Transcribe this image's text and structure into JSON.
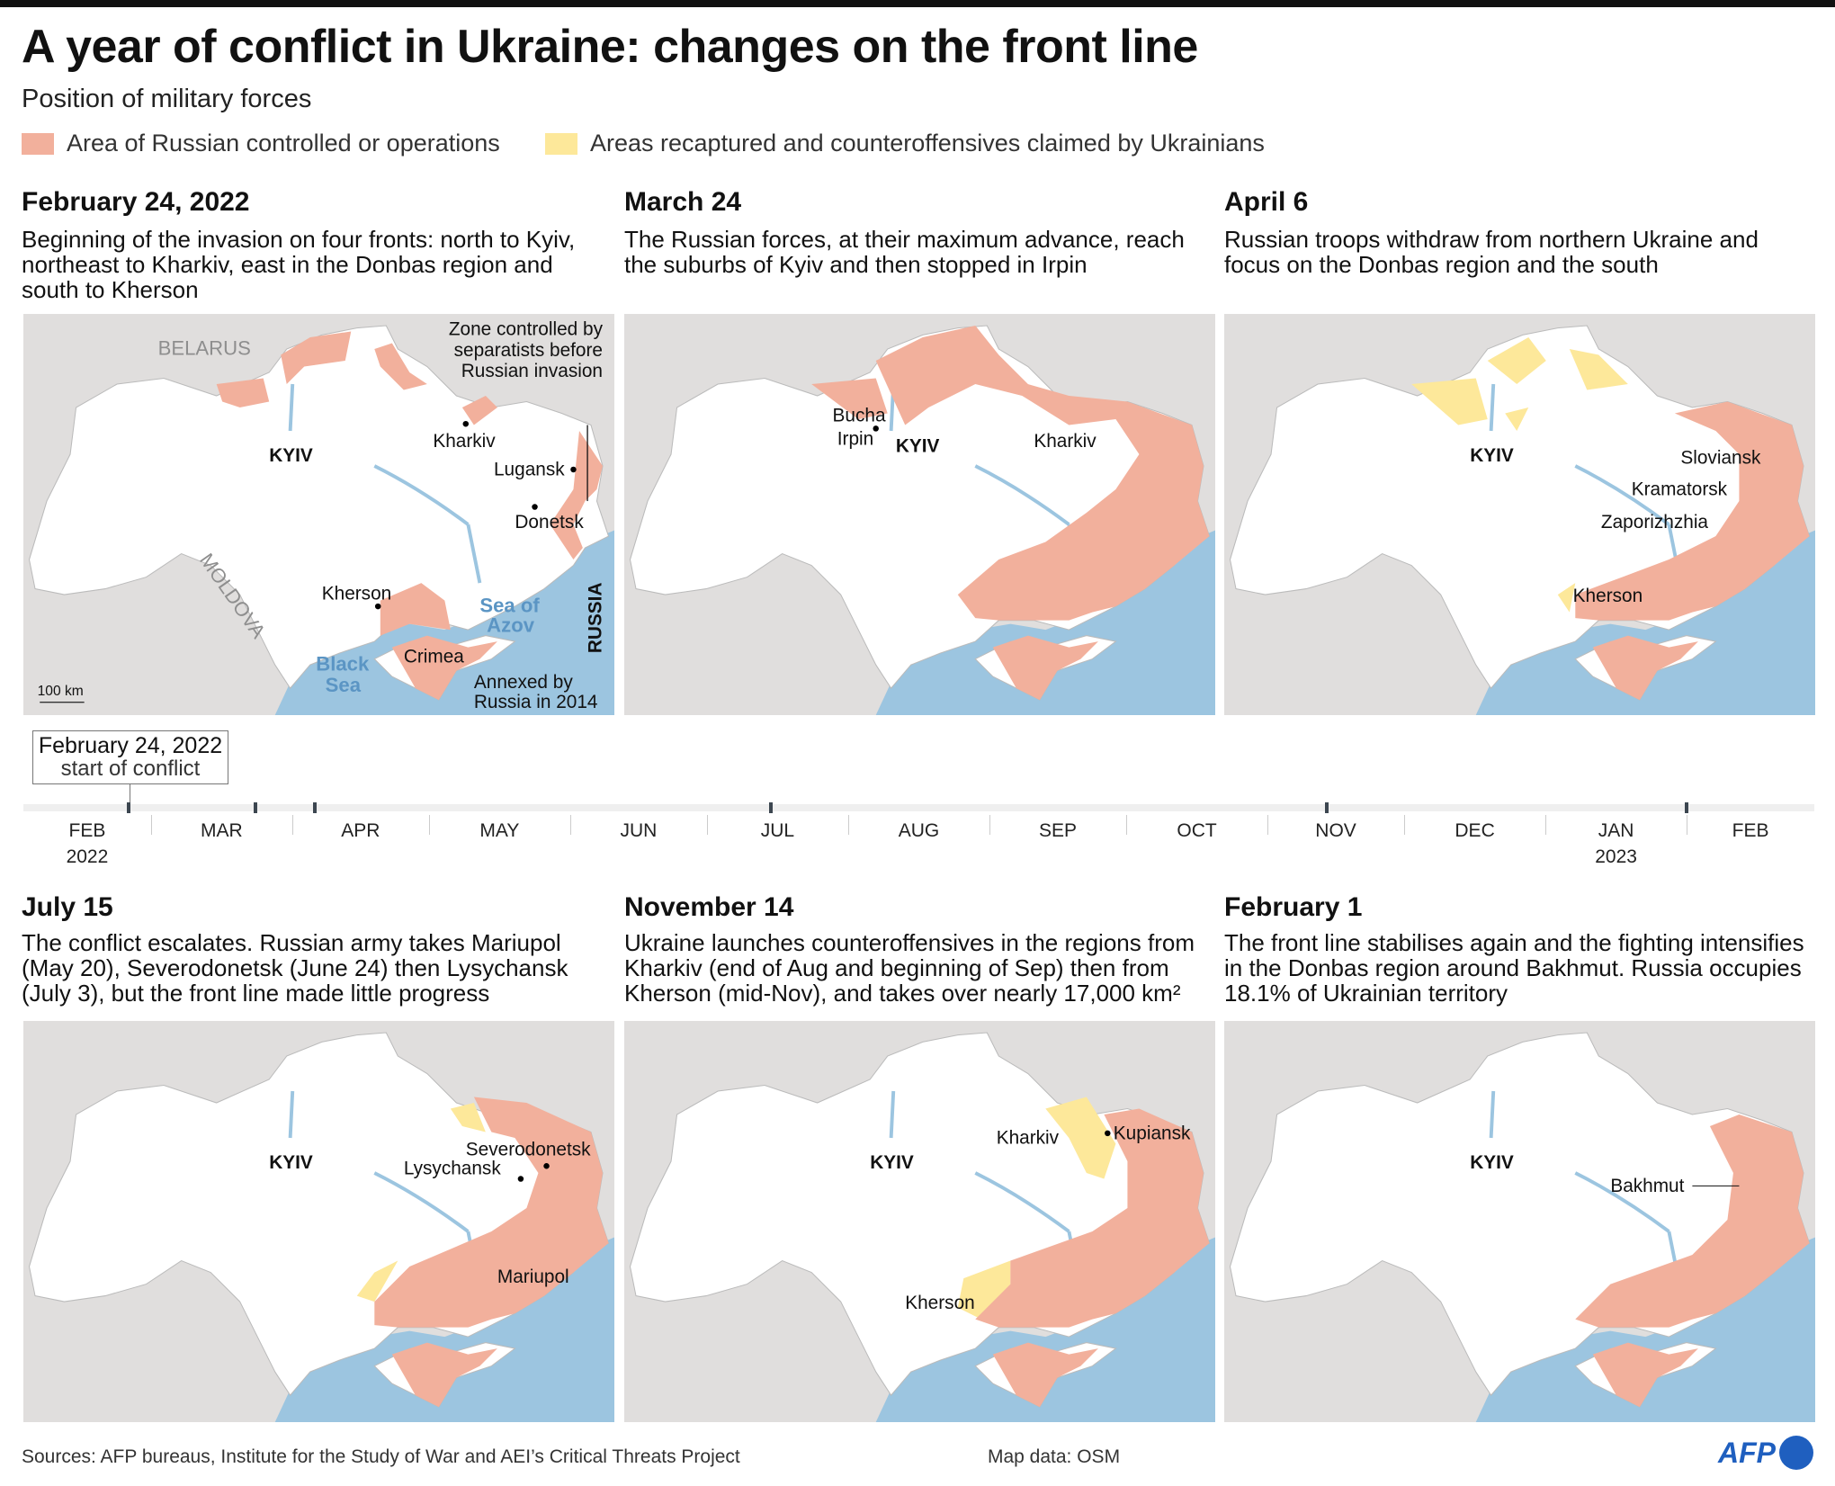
{
  "title": "A year of conflict in Ukraine: changes on the front line",
  "subtitle": "Position of military forces",
  "legend": [
    {
      "label": "Area of Russian controlled or operations",
      "color": "#f2b09c"
    },
    {
      "label": "Areas recaptured and counteroffensives claimed by Ukrainians",
      "color": "#fde89a"
    }
  ],
  "colors": {
    "land": "#ffffff",
    "neighbors": "#e0dedd",
    "sea": "#9cc5e0"
  },
  "panels": [
    {
      "title": "February 24, 2022",
      "desc": "Beginning of the invasion on four fronts: north to Kyiv, northeast to Kharkiv, east in the Donbas region and south to Kherson",
      "labels": {
        "belarus": "BELARUS",
        "moldova": "MOLDOVA",
        "russia": "RUSSIA",
        "kyiv": "KYIV",
        "kharkiv": "Kharkiv",
        "lugansk": "Lugansk",
        "donetsk": "Donetsk",
        "kherson": "Kherson",
        "crimea": "Crimea",
        "sea_azov_1": "Sea of",
        "sea_azov_2": "Azov",
        "black_sea_1": "Black",
        "black_sea_2": "Sea",
        "zone_1": "Zone controlled by",
        "zone_2": "separatists before",
        "zone_3": "Russian invasion",
        "annexed_1": "Annexed by",
        "annexed_2": "Russia in 2014",
        "scale": "100 km"
      }
    },
    {
      "title": "March 24",
      "desc": "The Russian forces, at their maximum advance, reach the suburbs of Kyiv and then stopped in Irpin",
      "labels": {
        "bucha": "Bucha",
        "irpin": "Irpin",
        "kyiv": "KYIV",
        "kharkiv": "Kharkiv"
      }
    },
    {
      "title": "April 6",
      "desc": "Russian troops withdraw from northern Ukraine and focus on the Donbas region and the south",
      "labels": {
        "kyiv": "KYIV",
        "sloviansk": "Sloviansk",
        "kramatorsk": "Kramatorsk",
        "zaporizhzhia": "Zaporizhzhia",
        "kherson": "Kherson"
      }
    },
    {
      "title": "July 15",
      "desc": "The conflict escalates. Russian army takes Mariupol (May 20), Severodonetsk (June 24) then Lysychansk (July 3), but the front line made little progress",
      "labels": {
        "kyiv": "KYIV",
        "severodonetsk": "Severodonetsk",
        "lysychansk": "Lysychansk",
        "mariupol": "Mariupol"
      }
    },
    {
      "title": "November 14",
      "desc": "Ukraine launches counteroffensives in the regions from Kharkiv (end of Aug and beginning of Sep) then from Kherson (mid-Nov), and takes over nearly 17,000 km²",
      "labels": {
        "kyiv": "KYIV",
        "kharkiv": "Kharkiv",
        "kupiansk": "Kupiansk",
        "kherson": "Kherson"
      }
    },
    {
      "title": "February 1",
      "desc": "The front line stabilises again and the fighting intensifies in the Donbas region around Bakhmut. Russia occupies 18.1% of Ukrainian territory",
      "labels": {
        "kyiv": "KYIV",
        "bakhmut": "Bakhmut"
      }
    }
  ],
  "timeline": {
    "callout_date": "February 24, 2022",
    "callout_text": "start of conflict",
    "months": [
      "FEB",
      "MAR",
      "APR",
      "MAY",
      "JUN",
      "JUL",
      "AUG",
      "SEP",
      "OCT",
      "NOV",
      "DEC",
      "JAN",
      "FEB"
    ],
    "years": [
      "2022",
      "2023"
    ],
    "events": [
      "2022-02-24",
      "2022-03-24",
      "2022-04-06",
      "2022-07-15",
      "2022-11-14",
      "2023-02-01"
    ]
  },
  "footer": {
    "sources": "Sources: AFP bureaus, Institute for the Study of War and AEI’s Critical Threats Project",
    "mapdata": "Map data: OSM",
    "logo": "AFP"
  }
}
